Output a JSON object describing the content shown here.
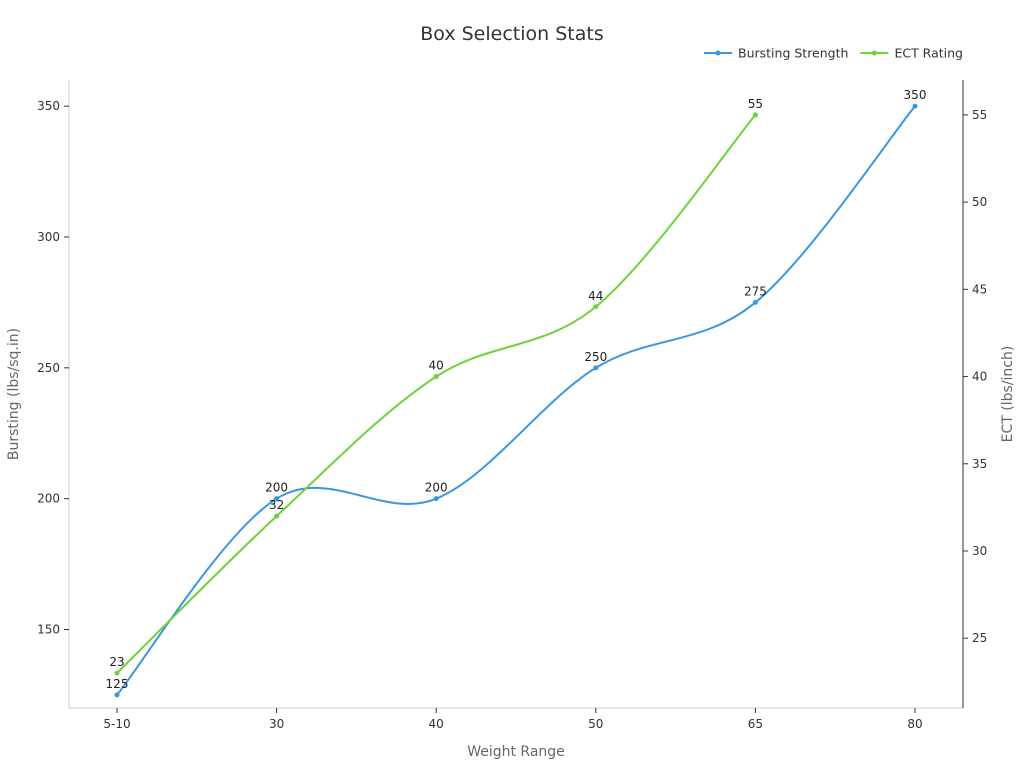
{
  "chart_data": {
    "type": "line",
    "title": "Box Selection Stats",
    "xlabel": "Weight Range",
    "ylabel_left": "Bursting (lbs/sq.in)",
    "ylabel_right": "ECT (lbs/inch)",
    "categories": [
      "5-10",
      "30",
      "40",
      "50",
      "65",
      "80"
    ],
    "ylim_left": [
      120,
      360
    ],
    "ylim_right": [
      21,
      57
    ],
    "yticks_left": [
      150,
      200,
      250,
      300,
      350
    ],
    "yticks_right": [
      25,
      30,
      35,
      40,
      45,
      50,
      55
    ],
    "legend_position": "top-right",
    "grid": false,
    "series": [
      {
        "name": "Bursting Strength",
        "axis": "left",
        "color": "#3b96e0",
        "values": [
          125,
          200,
          200,
          250,
          275,
          350
        ]
      },
      {
        "name": "ECT Rating",
        "axis": "right",
        "color": "#6cd33c",
        "values": [
          23,
          32,
          40,
          44,
          55,
          null
        ]
      }
    ]
  }
}
